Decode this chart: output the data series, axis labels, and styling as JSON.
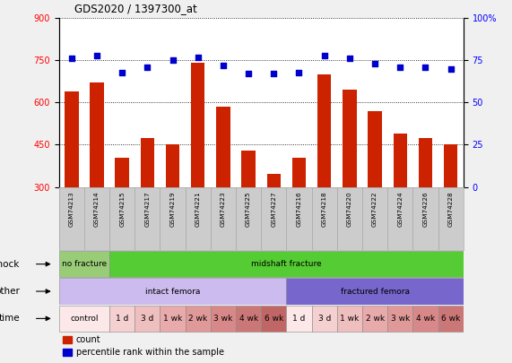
{
  "title": "GDS2020 / 1397300_at",
  "samples": [
    "GSM74213",
    "GSM74214",
    "GSM74215",
    "GSM74217",
    "GSM74219",
    "GSM74221",
    "GSM74223",
    "GSM74225",
    "GSM74227",
    "GSM74216",
    "GSM74218",
    "GSM74220",
    "GSM74222",
    "GSM74224",
    "GSM74226",
    "GSM74228"
  ],
  "bar_values": [
    640,
    670,
    405,
    475,
    450,
    740,
    585,
    430,
    345,
    405,
    700,
    645,
    570,
    490,
    475,
    450
  ],
  "dot_values": [
    76,
    78,
    68,
    71,
    75,
    77,
    72,
    67,
    67,
    68,
    78,
    76,
    73,
    71,
    71,
    70
  ],
  "bar_color": "#cc2200",
  "dot_color": "#0000cc",
  "ylim_left": [
    300,
    900
  ],
  "ylim_right": [
    0,
    100
  ],
  "yticks_left": [
    300,
    450,
    600,
    750,
    900
  ],
  "yticks_right": [
    0,
    25,
    50,
    75,
    100
  ],
  "shock_segments": [
    {
      "text": "no fracture",
      "start": 0,
      "end": 2,
      "color": "#99cc77"
    },
    {
      "text": "midshaft fracture",
      "start": 2,
      "end": 16,
      "color": "#55cc33"
    }
  ],
  "other_segments": [
    {
      "text": "intact femora",
      "start": 0,
      "end": 9,
      "color": "#ccbbee"
    },
    {
      "text": "fractured femora",
      "start": 9,
      "end": 16,
      "color": "#7766cc"
    }
  ],
  "time_cells": [
    {
      "text": "control",
      "start": 0,
      "end": 2,
      "color": "#fce8e8"
    },
    {
      "text": "1 d",
      "start": 2,
      "end": 3,
      "color": "#f5d0d0"
    },
    {
      "text": "3 d",
      "start": 3,
      "end": 4,
      "color": "#efbfbf"
    },
    {
      "text": "1 wk",
      "start": 4,
      "end": 5,
      "color": "#e8aaaa"
    },
    {
      "text": "2 wk",
      "start": 5,
      "end": 6,
      "color": "#e09999"
    },
    {
      "text": "3 wk",
      "start": 6,
      "end": 7,
      "color": "#d88888"
    },
    {
      "text": "4 wk",
      "start": 7,
      "end": 8,
      "color": "#cc7777"
    },
    {
      "text": "6 wk",
      "start": 8,
      "end": 9,
      "color": "#c06666"
    },
    {
      "text": "1 d",
      "start": 9,
      "end": 10,
      "color": "#fce8e8"
    },
    {
      "text": "3 d",
      "start": 10,
      "end": 11,
      "color": "#f5d0d0"
    },
    {
      "text": "1 wk",
      "start": 11,
      "end": 12,
      "color": "#efbfbf"
    },
    {
      "text": "2 wk",
      "start": 12,
      "end": 13,
      "color": "#e8aaaa"
    },
    {
      "text": "3 wk",
      "start": 13,
      "end": 14,
      "color": "#e09999"
    },
    {
      "text": "4 wk",
      "start": 14,
      "end": 15,
      "color": "#d88888"
    },
    {
      "text": "6 wk",
      "start": 15,
      "end": 16,
      "color": "#cc7777"
    }
  ],
  "n_samples": 16,
  "label_bg": "#cccccc",
  "fig_bg": "#f0f0f0"
}
